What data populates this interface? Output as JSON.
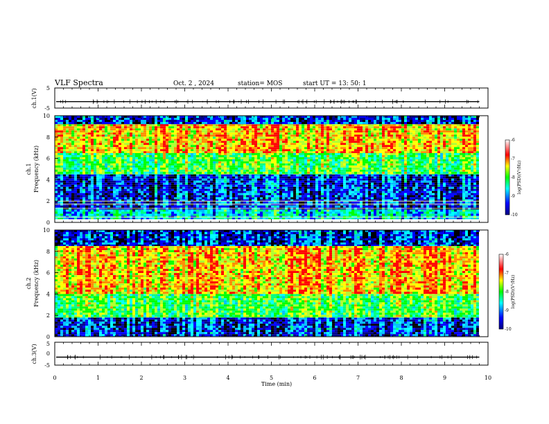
{
  "header": {
    "title": "VLF Spectra",
    "date": "Oct. 2  , 2024",
    "station": "station= MOS",
    "start": "start  UT =   13: 50: 1"
  },
  "chart_data": [
    {
      "type": "line",
      "name": "ch1-waveform",
      "ylabel": "ch.1(V)",
      "ylim": [
        -5,
        5
      ],
      "yticks": [
        "5",
        "-5"
      ],
      "xlim": [
        0,
        10
      ],
      "baseline": -1.8,
      "line_color": "#000000"
    },
    {
      "type": "heatmap",
      "name": "ch1-spectrogram",
      "ylabel_top": "ch.1",
      "ylabel_bottom": "Frequency (kHz)",
      "ylim": [
        0,
        10
      ],
      "yticks": [
        "0",
        "2",
        "4",
        "6",
        "8",
        "10"
      ],
      "xlim": [
        0,
        9.8
      ],
      "colorbar": {
        "label": "log(PSD)(V²/Hz)",
        "ticks": [
          "-6",
          "-7",
          "-8",
          "-9",
          "-10"
        ],
        "range": [
          -10,
          -6
        ],
        "colors": [
          "#000080",
          "#0000ff",
          "#00ffff",
          "#00ff00",
          "#ffff00",
          "#ff0000",
          "#ffffff"
        ]
      },
      "bands": [
        {
          "f_low": 0.3,
          "f_high": 1.2,
          "level": "moderate"
        },
        {
          "f_low": 1.2,
          "f_high": 4.5,
          "level": "low"
        },
        {
          "f_low": 4.5,
          "f_high": 6.5,
          "level": "medium"
        },
        {
          "f_low": 6.5,
          "f_high": 9.2,
          "level": "high"
        },
        {
          "f_low": 9.2,
          "f_high": 10,
          "level": "low"
        }
      ],
      "narrowband_lines_khz": [
        0.5,
        1.3,
        1.7,
        2.0
      ]
    },
    {
      "type": "heatmap",
      "name": "ch2-spectrogram",
      "ylabel_top": "ch.2",
      "ylabel_bottom": "Frequency (kHz)",
      "ylim": [
        0,
        10
      ],
      "yticks": [
        "0",
        "2",
        "4",
        "6",
        "8",
        "10"
      ],
      "xlim": [
        0,
        9.8
      ],
      "colorbar": {
        "label": "log(PSD)(V²/Hz)",
        "ticks": [
          "-6",
          "-7",
          "-8",
          "-9",
          "-10"
        ],
        "range": [
          -10,
          -6
        ],
        "colors": [
          "#000080",
          "#0000ff",
          "#00ffff",
          "#00ff00",
          "#ffff00",
          "#ff0000",
          "#ffffff"
        ]
      },
      "bands": [
        {
          "f_low": 0,
          "f_high": 1.8,
          "level": "low"
        },
        {
          "f_low": 1.8,
          "f_high": 4.0,
          "level": "medium"
        },
        {
          "f_low": 4.0,
          "f_high": 8.5,
          "level": "high"
        },
        {
          "f_low": 8.5,
          "f_high": 10,
          "level": "low"
        }
      ]
    },
    {
      "type": "line",
      "name": "ch3-waveform",
      "ylabel": "ch.3(V)",
      "ylim": [
        -5,
        5
      ],
      "yticks": [
        "5",
        "0",
        "-5"
      ],
      "xlim": [
        0,
        10
      ],
      "baseline": -1.5,
      "line_color": "#000000"
    }
  ],
  "xaxis": {
    "label": "Time  (min)",
    "ticks": [
      "0",
      "1",
      "2",
      "3",
      "4",
      "5",
      "6",
      "7",
      "8",
      "9",
      "10"
    ],
    "range": [
      0,
      10
    ]
  }
}
